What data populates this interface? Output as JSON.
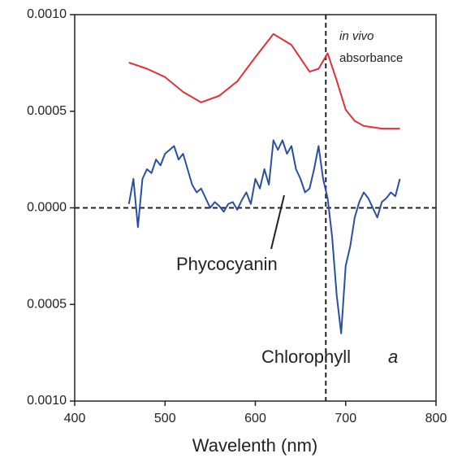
{
  "chart_data": {
    "type": "line",
    "xlabel": "Wavelenth (nm)",
    "xlim": [
      400,
      800
    ],
    "xticks": [
      400,
      500,
      600,
      700,
      800
    ],
    "ylim": [
      -0.001,
      0.001
    ],
    "yticks": [
      {
        "value": 0.001,
        "label": "0.0010"
      },
      0.0005,
      {
        "value": 0,
        "label": "0.0000"
      },
      {
        "value": -0.0005,
        "label": "0.0005"
      },
      {
        "value": -0.001,
        "label": "0.0010"
      }
    ],
    "hline": 0,
    "vline": 678,
    "series": [
      {
        "name": "absorbance",
        "color": "#e0303a",
        "x": [
          460,
          480,
          500,
          520,
          540,
          560,
          580,
          600,
          620,
          640,
          660,
          670,
          680,
          690,
          700,
          710,
          720,
          740,
          760
        ],
        "values": [
          0.000752,
          0.00072,
          0.000677,
          0.0006,
          0.000546,
          0.00058,
          0.000655,
          0.00078,
          0.0009,
          0.000843,
          0.000705,
          0.00072,
          0.0008,
          0.00066,
          0.000508,
          0.00045,
          0.000424,
          0.00041,
          0.00041
        ]
      },
      {
        "name": "Phycocyanin",
        "color": "#2b4fa0",
        "x": [
          460,
          465,
          470,
          475,
          480,
          485,
          490,
          495,
          500,
          505,
          510,
          515,
          520,
          525,
          530,
          535,
          540,
          545,
          550,
          555,
          560,
          565,
          570,
          575,
          580,
          585,
          590,
          595,
          600,
          605,
          610,
          615,
          620,
          625,
          630,
          635,
          640,
          645,
          650,
          655,
          660,
          665,
          670,
          675,
          680,
          685,
          690,
          695,
          700,
          705,
          710,
          715,
          720,
          725,
          730,
          735,
          740,
          745,
          750,
          755,
          760
        ],
        "values": [
          2e-05,
          0.00015,
          -0.0001,
          0.00015,
          0.0002,
          0.00018,
          0.00025,
          0.00022,
          0.00028,
          0.0003,
          0.00032,
          0.00025,
          0.00028,
          0.0002,
          0.00012,
          8e-05,
          0.0001,
          5e-05,
          0,
          3e-05,
          1e-05,
          -2e-05,
          2e-05,
          3e-05,
          -1e-05,
          4e-05,
          8e-05,
          2e-05,
          0.00015,
          0.0001,
          0.0002,
          0.00012,
          0.00035,
          0.0003,
          0.00035,
          0.00028,
          0.00032,
          0.0002,
          0.00015,
          8e-05,
          0.0001,
          0.0002,
          0.00032,
          0.00015,
          5e-05,
          -0.00015,
          -0.00045,
          -0.00065,
          -0.0003,
          -0.0002,
          -5e-05,
          3e-05,
          8e-05,
          5e-05,
          0,
          -5e-05,
          3e-05,
          5e-05,
          8e-05,
          6e-05,
          0.00015
        ]
      }
    ],
    "annotations": {
      "in_vivo": "in vivo",
      "absorbance": "absorbance",
      "phycocyanin": "Phycocyanin",
      "chlorophyll": "Chlorophyll",
      "chlorophyll_a": "a"
    }
  }
}
